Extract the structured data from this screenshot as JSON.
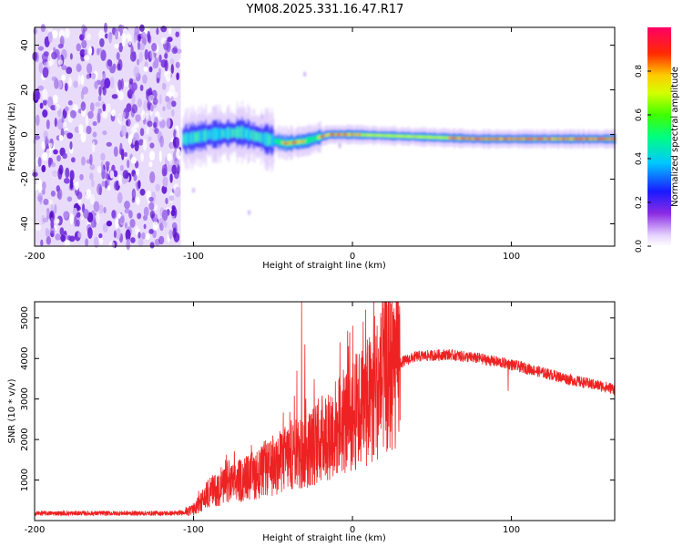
{
  "title": "YM08.2025.331.16.47.R17",
  "colors": {
    "snr_line": "#ee2222",
    "noise_purple": "#7f3fdf",
    "axis": "#000000"
  },
  "chart_data": [
    {
      "type": "heatmap",
      "name": "spectrogram",
      "xlabel": "Height of straight line (km)",
      "ylabel": "Frequency (Hz)",
      "xlim": [
        -200,
        165
      ],
      "ylim": [
        -50,
        48
      ],
      "xticks": [
        -200,
        -100,
        0,
        100
      ],
      "xtick_labels": [
        "-200",
        "-100",
        "0",
        "100"
      ],
      "yticks": [
        -40,
        -20,
        0,
        20,
        40
      ],
      "ytick_labels": [
        "-40",
        "-20",
        "0",
        "20",
        "40"
      ],
      "noise_region_x": [
        -200,
        -108
      ],
      "signal_ridge": [
        {
          "x": -105,
          "y": -2
        },
        {
          "x": -90,
          "y": 0
        },
        {
          "x": -70,
          "y": 1
        },
        {
          "x": -55,
          "y": -2
        },
        {
          "x": -42,
          "y": -4
        },
        {
          "x": -30,
          "y": -3
        },
        {
          "x": -15,
          "y": 0
        },
        {
          "x": 0,
          "y": 0
        },
        {
          "x": 40,
          "y": -1
        },
        {
          "x": 80,
          "y": -2
        },
        {
          "x": 120,
          "y": -2
        },
        {
          "x": 165,
          "y": -2
        }
      ],
      "colorbar": {
        "label": "Normalized spectral amplitude",
        "range": [
          0,
          1
        ],
        "ticks": [
          0.0,
          0.2,
          0.4,
          0.6,
          0.8
        ],
        "tick_labels": [
          "0.0",
          "0.2",
          "0.4",
          "0.6",
          "0.8"
        ]
      }
    },
    {
      "type": "line",
      "name": "snr",
      "xlabel": "Height of straight line (km)",
      "ylabel": "SNR (10 * v/v)",
      "xlim": [
        -200,
        165
      ],
      "ylim": [
        0,
        5400
      ],
      "xticks": [
        -200,
        -100,
        0,
        100
      ],
      "xtick_labels": [
        "-200",
        "-100",
        "0",
        "100"
      ],
      "yticks": [
        1000,
        2000,
        3000,
        4000,
        5000
      ],
      "ytick_labels": [
        "1000",
        "2000",
        "3000",
        "4000",
        "5000"
      ],
      "series": [
        {
          "name": "SNR",
          "envelope": [
            {
              "x": -200,
              "y": 180
            },
            {
              "x": -110,
              "y": 180
            },
            {
              "x": -100,
              "y": 250
            },
            {
              "x": -90,
              "y": 700
            },
            {
              "x": -70,
              "y": 1000
            },
            {
              "x": -50,
              "y": 1300
            },
            {
              "x": -40,
              "y": 1600
            },
            {
              "x": -30,
              "y": 1700
            },
            {
              "x": -20,
              "y": 2000
            },
            {
              "x": -10,
              "y": 2300
            },
            {
              "x": 0,
              "y": 2600
            },
            {
              "x": 10,
              "y": 2950
            },
            {
              "x": 20,
              "y": 3500
            },
            {
              "x": 30,
              "y": 3900
            },
            {
              "x": 40,
              "y": 4050
            },
            {
              "x": 60,
              "y": 4100
            },
            {
              "x": 80,
              "y": 4000
            },
            {
              "x": 100,
              "y": 3850
            },
            {
              "x": 120,
              "y": 3650
            },
            {
              "x": 140,
              "y": 3450
            },
            {
              "x": 165,
              "y": 3250
            }
          ],
          "spikes": [
            {
              "x": -32,
              "y": 5400
            },
            {
              "x": -30,
              "y": 4350
            },
            {
              "x": -35,
              "y": 3700
            },
            {
              "x": 98,
              "y": 3200
            }
          ]
        }
      ]
    }
  ]
}
